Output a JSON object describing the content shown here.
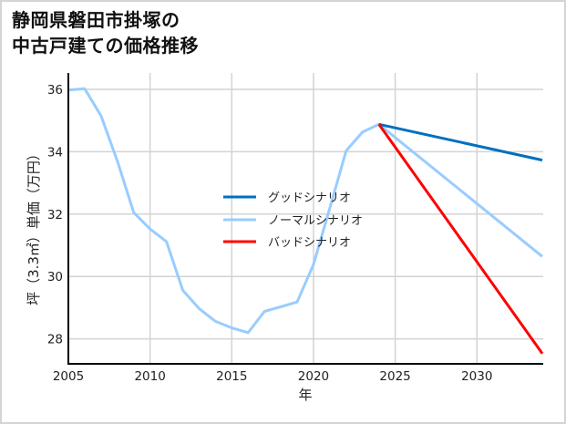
{
  "title": {
    "line1": "静岡県磐田市掛塚の",
    "line2": "中古戸建ての価格推移"
  },
  "colors": {
    "good": "#0070C0",
    "normal": "#99CCFF",
    "bad": "#FF0000",
    "grid": "#d3d3d3",
    "axis": "#000000",
    "frame": "#d4d4d4"
  },
  "chart_data": {
    "type": "line",
    "title": "静岡県磐田市掛塚の中古戸建ての価格推移",
    "xlabel": "年",
    "ylabel": "坪（3.3㎡）単価（万円）",
    "xlim": [
      2005,
      2034
    ],
    "ylim": [
      27.2,
      36.4
    ],
    "x_ticks": [
      2005,
      2010,
      2015,
      2020,
      2025,
      2030
    ],
    "y_ticks": [
      28,
      30,
      32,
      34,
      36
    ],
    "grid": true,
    "legend_position": "center",
    "series": [
      {
        "name": "グッドシナリオ",
        "key": "good",
        "x": [
          2024,
          2034
        ],
        "values": [
          34.88,
          33.73
        ]
      },
      {
        "name": "ノーマルシナリオ",
        "key": "normal",
        "x": [
          2005,
          2006,
          2007,
          2008,
          2009,
          2010,
          2011,
          2012,
          2013,
          2014,
          2015,
          2016,
          2017,
          2018,
          2019,
          2020,
          2021,
          2022,
          2023,
          2024,
          2034
        ],
        "values": [
          35.98,
          36.02,
          35.15,
          33.7,
          32.05,
          31.52,
          31.12,
          29.56,
          28.97,
          28.56,
          28.35,
          28.2,
          28.88,
          29.03,
          29.18,
          30.38,
          32.2,
          34.03,
          34.63,
          34.88,
          30.64
        ]
      },
      {
        "name": "バッドシナリオ",
        "key": "bad",
        "x": [
          2024,
          2034
        ],
        "values": [
          34.88,
          27.53
        ]
      }
    ]
  },
  "legend": {
    "items": [
      {
        "label": "グッドシナリオ",
        "key": "good"
      },
      {
        "label": "ノーマルシナリオ",
        "key": "normal"
      },
      {
        "label": "バッドシナリオ",
        "key": "bad"
      }
    ]
  }
}
